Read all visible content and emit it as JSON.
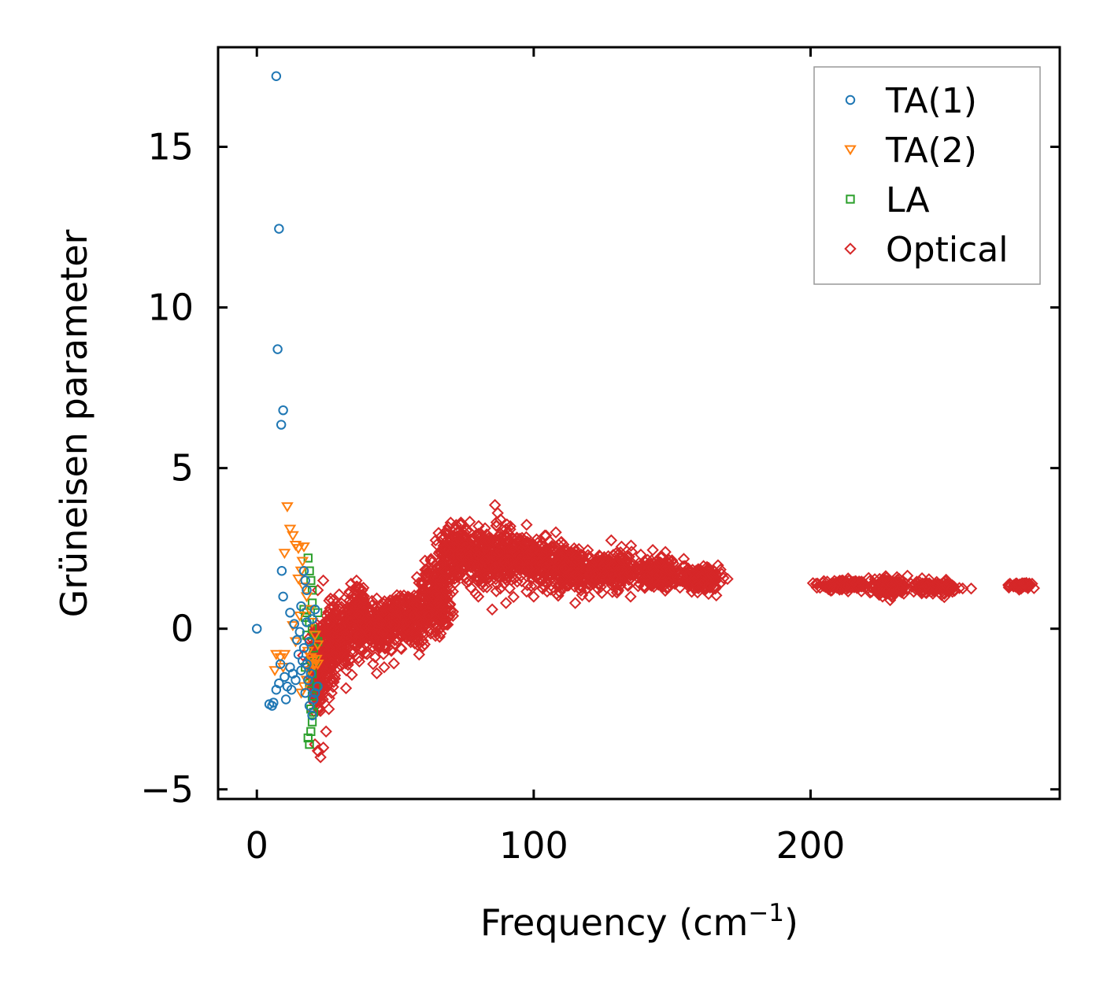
{
  "chart_data": {
    "type": "scatter",
    "title": "",
    "xlabel": "Frequency (cm",
    "xlabel_sup": "−1",
    "xlabel_close": ")",
    "ylabel": "Grüneisen parameter",
    "xlim": [
      -14,
      290
    ],
    "ylim": [
      -5.3,
      18.1
    ],
    "xticks": [
      0,
      100,
      200
    ],
    "xtick_labels": [
      "0",
      "100",
      "200"
    ],
    "yticks": [
      -5,
      0,
      5,
      10,
      15
    ],
    "ytick_labels": [
      "−5",
      "0",
      "5",
      "10",
      "15"
    ],
    "legend_position": "top-right",
    "series": [
      {
        "name": "TA(1)",
        "marker": "circle",
        "color": "#1f77b4",
        "points": [
          [
            0,
            0
          ],
          [
            7,
            17.2
          ],
          [
            8,
            12.45
          ],
          [
            7.5,
            8.7
          ],
          [
            9.5,
            6.8
          ],
          [
            8.8,
            6.35
          ],
          [
            9,
            1.8
          ],
          [
            9.5,
            1
          ],
          [
            12,
            0.5
          ],
          [
            13.5,
            0.15
          ],
          [
            14.5,
            -0.35
          ],
          [
            16,
            0.7
          ],
          [
            17,
            1.8
          ],
          [
            17.5,
            1.5
          ],
          [
            18,
            1.2
          ],
          [
            15,
            -0.8
          ],
          [
            12,
            -1.2
          ],
          [
            10,
            -1.5
          ],
          [
            8,
            -1.7
          ],
          [
            7,
            -1.9
          ],
          [
            6,
            -2.3
          ],
          [
            5.5,
            -2.4
          ],
          [
            4.5,
            -2.35
          ],
          [
            10.5,
            -2.2
          ],
          [
            12.5,
            -1.9
          ],
          [
            14,
            -1.6
          ],
          [
            16,
            -1.3
          ],
          [
            18,
            -1.1
          ],
          [
            19,
            -2.4
          ],
          [
            20,
            -2.7
          ],
          [
            21,
            -2
          ],
          [
            22,
            -1.8
          ],
          [
            17,
            -0.6
          ],
          [
            19,
            -0.4
          ],
          [
            20,
            0.3
          ],
          [
            21,
            0.6
          ],
          [
            18.5,
            -1.6
          ],
          [
            17.5,
            -2
          ],
          [
            19.5,
            -1.4
          ],
          [
            20.5,
            -2.2
          ],
          [
            16.5,
            -1.0
          ],
          [
            13,
            -1.4
          ],
          [
            11,
            -1.8
          ],
          [
            8.5,
            -1.1
          ],
          [
            15.5,
            -0.1
          ],
          [
            18,
            0.2
          ]
        ]
      },
      {
        "name": "TA(2)",
        "marker": "triangle-down",
        "color": "#ff7f0e",
        "points": [
          [
            11,
            3.8
          ],
          [
            12,
            3.1
          ],
          [
            13,
            2.9
          ],
          [
            14,
            2.6
          ],
          [
            15,
            2.5
          ],
          [
            17,
            2.55
          ],
          [
            10,
            2.35
          ],
          [
            16.5,
            2.1
          ],
          [
            16,
            1.8
          ],
          [
            15,
            1.55
          ],
          [
            17,
            1.3
          ],
          [
            18,
            1.0
          ],
          [
            19,
            0.6
          ],
          [
            20,
            0.2
          ],
          [
            21,
            -0.2
          ],
          [
            22,
            -0.5
          ],
          [
            21,
            -1.1
          ],
          [
            20,
            -1.0
          ],
          [
            19,
            -1.3
          ],
          [
            18,
            -1.6
          ],
          [
            17,
            -1.8
          ],
          [
            16,
            -2.0
          ],
          [
            18.5,
            -0.7
          ],
          [
            19.5,
            -0.9
          ],
          [
            22,
            -1.1
          ],
          [
            21.5,
            -0.95
          ],
          [
            20.5,
            -1.15
          ],
          [
            10,
            -0.8
          ],
          [
            7,
            -0.8
          ],
          [
            8.5,
            -0.9
          ],
          [
            6.5,
            -1.3
          ],
          [
            9.5,
            -1.2
          ],
          [
            14,
            -0.4
          ],
          [
            13,
            0.1
          ],
          [
            15.5,
            0.4
          ]
        ]
      },
      {
        "name": "LA",
        "marker": "square",
        "color": "#2ca02c",
        "points": [
          [
            18.5,
            2.2
          ],
          [
            19,
            1.8
          ],
          [
            19.5,
            1.5
          ],
          [
            20,
            1.2
          ],
          [
            20,
            0.8
          ],
          [
            18,
            0.5
          ],
          [
            17.5,
            0.35
          ],
          [
            17,
            0.6
          ],
          [
            19,
            0.2
          ],
          [
            20,
            0.0
          ],
          [
            21,
            -0.2
          ],
          [
            22,
            -0.4
          ],
          [
            22,
            0.5
          ],
          [
            20.5,
            -0.6
          ],
          [
            19.5,
            -0.9
          ],
          [
            21,
            -1.0
          ],
          [
            20,
            -1.4
          ],
          [
            19,
            -1.7
          ],
          [
            20,
            -2.1
          ],
          [
            19.5,
            -2.5
          ],
          [
            20,
            -2.9
          ],
          [
            19.5,
            -3.2
          ],
          [
            18.5,
            -3.4
          ],
          [
            19,
            -3.6
          ],
          [
            20.5,
            -2.6
          ],
          [
            21.5,
            -1.8
          ],
          [
            18,
            -0.2
          ],
          [
            17.5,
            -1.2
          ]
        ]
      },
      {
        "name": "Optical",
        "marker": "diamond",
        "color": "#d62728",
        "clusters": [
          {
            "cx": 22,
            "cy": -1.2,
            "sx": 2.2,
            "sy": 1.3,
            "n": 150
          },
          {
            "cx": 25,
            "cy": -0.8,
            "sx": 3.0,
            "sy": 1.2,
            "n": 140
          },
          {
            "cx": 30,
            "cy": -0.3,
            "sx": 4.0,
            "sy": 0.9,
            "n": 160
          },
          {
            "cx": 37,
            "cy": 0.3,
            "sx": 3.5,
            "sy": 0.8,
            "n": 150
          },
          {
            "cx": 45,
            "cy": 0.0,
            "sx": 5.5,
            "sy": 0.6,
            "n": 190
          },
          {
            "cx": 55,
            "cy": 0.3,
            "sx": 6.5,
            "sy": 0.7,
            "n": 210
          },
          {
            "cx": 65,
            "cy": 1.0,
            "sx": 6.0,
            "sy": 0.9,
            "n": 220
          },
          {
            "cx": 73,
            "cy": 2.4,
            "sx": 6.0,
            "sy": 0.6,
            "n": 230
          },
          {
            "cx": 84,
            "cy": 2.2,
            "sx": 7.0,
            "sy": 0.7,
            "n": 260
          },
          {
            "cx": 97,
            "cy": 2.2,
            "sx": 8.0,
            "sy": 0.6,
            "n": 280
          },
          {
            "cx": 112,
            "cy": 1.9,
            "sx": 8.0,
            "sy": 0.55,
            "n": 270
          },
          {
            "cx": 128,
            "cy": 1.8,
            "sx": 9.0,
            "sy": 0.45,
            "n": 270
          },
          {
            "cx": 145,
            "cy": 1.7,
            "sx": 8.0,
            "sy": 0.35,
            "n": 230
          },
          {
            "cx": 160,
            "cy": 1.55,
            "sx": 6.0,
            "sy": 0.25,
            "n": 180
          },
          {
            "cx": 212,
            "cy": 1.35,
            "sx": 7.0,
            "sy": 0.12,
            "n": 120
          },
          {
            "cx": 228,
            "cy": 1.3,
            "sx": 6.0,
            "sy": 0.2,
            "n": 150
          },
          {
            "cx": 244,
            "cy": 1.3,
            "sx": 7.0,
            "sy": 0.15,
            "n": 120
          },
          {
            "cx": 276,
            "cy": 1.35,
            "sx": 3.0,
            "sy": 0.07,
            "n": 70
          }
        ],
        "points": [
          [
            86,
            3.85
          ],
          [
            87,
            3.6
          ],
          [
            88,
            3.4
          ],
          [
            90,
            3.1
          ],
          [
            70,
            3.3
          ],
          [
            68,
            3.0
          ],
          [
            75,
            2.9
          ],
          [
            95,
            2.8
          ],
          [
            104,
            2.9
          ],
          [
            108,
            3.0
          ],
          [
            110,
            2.7
          ],
          [
            128,
            2.75
          ],
          [
            143,
            2.45
          ],
          [
            150,
            2.1
          ],
          [
            36,
            1.5
          ],
          [
            34,
            1.4
          ],
          [
            38,
            1.2
          ],
          [
            24,
            1.5
          ],
          [
            22,
            1.2
          ],
          [
            52,
            -0.6
          ],
          [
            58,
            -0.5
          ],
          [
            42,
            -1.1
          ],
          [
            46,
            -1.2
          ],
          [
            27,
            -2.0
          ],
          [
            26,
            -2.5
          ],
          [
            25,
            -3.2
          ],
          [
            24,
            -3.7
          ],
          [
            23,
            -4.0
          ],
          [
            22,
            -3.8
          ],
          [
            21,
            -3.6
          ],
          [
            65,
            0.1
          ],
          [
            62,
            0.4
          ],
          [
            60,
            0.9
          ],
          [
            80,
            1.0
          ],
          [
            85,
            0.6
          ],
          [
            90,
            0.8
          ],
          [
            100,
            1.0
          ],
          [
            115,
            0.8
          ],
          [
            120,
            1.0
          ],
          [
            135,
            1.0
          ],
          [
            170,
            1.55
          ],
          [
            165,
            1.3
          ],
          [
            202,
            1.4
          ],
          [
            258,
            1.25
          ],
          [
            280,
            1.4
          ],
          [
            272,
            1.4
          ],
          [
            226,
            1.0
          ],
          [
            222,
            1.15
          ],
          [
            235,
            1.65
          ],
          [
            232,
            1.55
          ]
        ]
      }
    ]
  }
}
